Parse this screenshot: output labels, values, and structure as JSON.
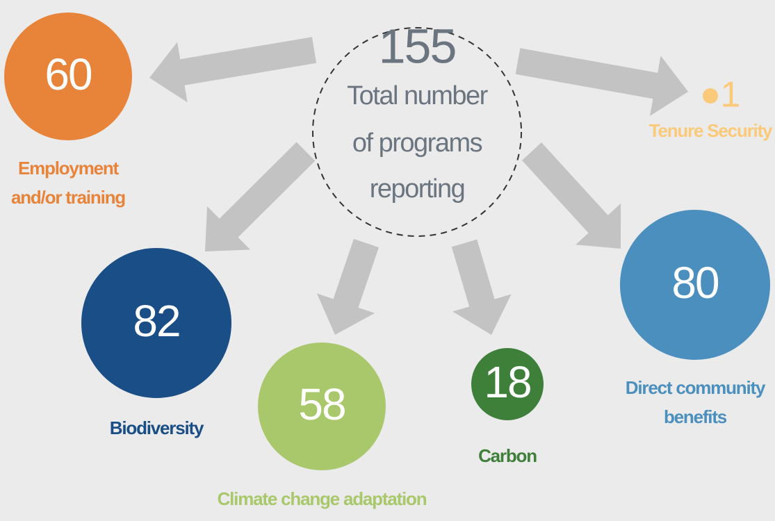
{
  "center": {
    "value": 155,
    "label": [
      "Total number",
      "of programs",
      "reporting"
    ]
  },
  "nodes": [
    {
      "value": 60,
      "label": [
        "Employment",
        "and/or training"
      ]
    },
    {
      "value": 1,
      "label": [
        "Tenure Security"
      ]
    },
    {
      "value": 82,
      "label": [
        "Biodiversity"
      ]
    },
    {
      "value": 58,
      "label": [
        "Climate change adaptation"
      ]
    },
    {
      "value": 18,
      "label": [
        "Carbon"
      ]
    },
    {
      "value": 80,
      "label": [
        "Direct community",
        "benefits"
      ]
    }
  ]
}
